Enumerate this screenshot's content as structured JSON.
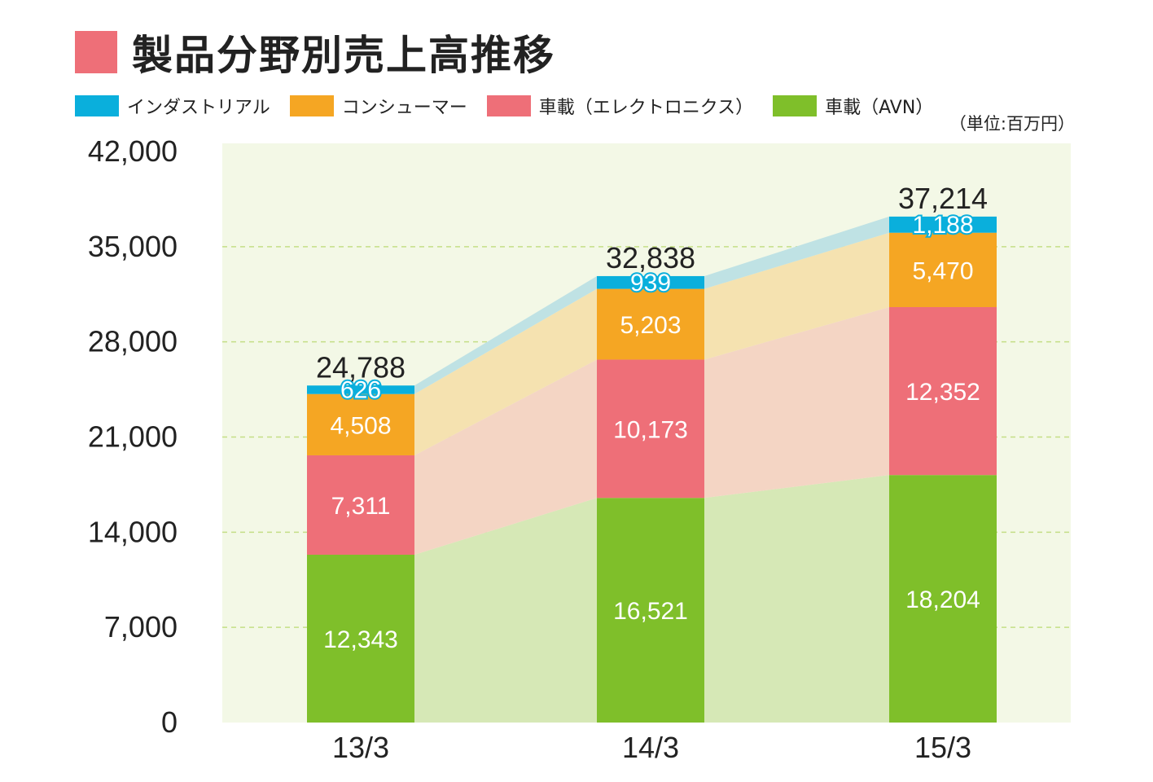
{
  "title": "製品分野別売上高推移",
  "unit": "（単位:百万円）",
  "colors": {
    "title_swatch": "#ee6f78",
    "plot_background": "#f3f8e6",
    "gridline": "#c4de86"
  },
  "legend": [
    {
      "label": "インダストリアル",
      "color": "#0aafdc"
    },
    {
      "label": "コンシューマー",
      "color": "#f5a623"
    },
    {
      "label": "車載（エレクトロニクス）",
      "color": "#ee6f78"
    },
    {
      "label": "車載（AVN）",
      "color": "#7fbf2a"
    }
  ],
  "chart_data": {
    "type": "bar",
    "stacked": true,
    "categories": [
      "13/3",
      "14/3",
      "15/3"
    ],
    "series": [
      {
        "name": "車載（AVN）",
        "values": [
          12343,
          16521,
          18204
        ],
        "labels": [
          "12,343",
          "16,521",
          "18,204"
        ],
        "color": "#7fbf2a",
        "band_color": "#d6e8b6"
      },
      {
        "name": "車載（エレクトロニクス）",
        "values": [
          7311,
          10173,
          12352
        ],
        "labels": [
          "7,311",
          "10,173",
          "12,352"
        ],
        "color": "#ee6f78",
        "band_color": "#f4d5c4"
      },
      {
        "name": "コンシューマー",
        "values": [
          4508,
          5203,
          5470
        ],
        "labels": [
          "4,508",
          "5,203",
          "5,470"
        ],
        "color": "#f5a623",
        "band_color": "#f5e2b0"
      },
      {
        "name": "インダストリアル",
        "values": [
          626,
          939,
          1188
        ],
        "labels": [
          "626",
          "939",
          "1,188"
        ],
        "color": "#0aafdc",
        "band_color": "#bfe2e4"
      }
    ],
    "totals": [
      24788,
      32838,
      37214
    ],
    "total_labels": [
      "24,788",
      "32,838",
      "37,214"
    ],
    "yticks": [
      0,
      7000,
      14000,
      21000,
      28000,
      35000,
      42000
    ],
    "ytick_labels": [
      "0",
      "7,000",
      "14,000",
      "21,000",
      "28,000",
      "35,000",
      "42,000"
    ],
    "ylim": [
      0,
      42000
    ],
    "grid": true
  }
}
